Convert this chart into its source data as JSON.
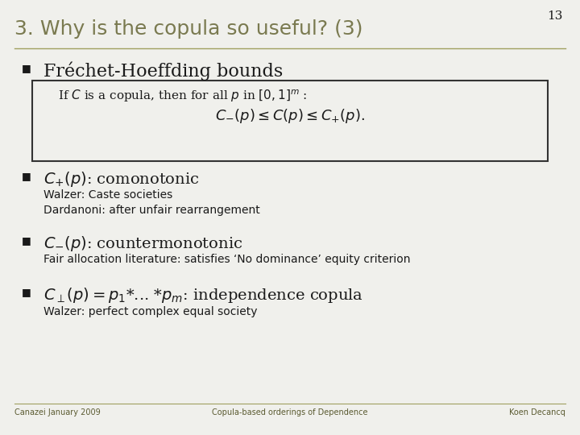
{
  "bg_color": "#f0f0ec",
  "title": "3. Why is the copula so useful? (3)",
  "title_color": "#7a7a50",
  "title_fontsize": 18,
  "slide_number": "13",
  "header_line_color": "#a0a060",
  "box_text_line1": "If $C$ is a copula, then for all $p$ in $[0,1]^m$ :",
  "box_text_line2": "$C_{-}(p) \\leq C(p) \\leq C_{+}(p).$",
  "frechet_bullet": "Fréchet-Hoeffding bounds",
  "bullet1_main": "$C_{+}(p)$: comonotonic",
  "bullet1_sub1": "Walzer: Caste societies",
  "bullet1_sub2": "Dardanoni: after unfair rearrangement",
  "bullet2_main": "$C_{-}(p)$: countermonotonic",
  "bullet2_sub1": "Fair allocation literature: satisfies ‘No dominance’ equity criterion",
  "bullet3_main": "$C_{\\perp}(p)=p_1$*... *$p_m$: independence copula",
  "bullet3_sub1": "Walzer: perfect complex equal society",
  "footer_left": "Canazei January 2009",
  "footer_center": "Copula-based orderings of Dependence",
  "footer_right": "Koen Decancq",
  "text_color": "#1a1a1a",
  "bullet_symbol": "■",
  "footer_color": "#5a5a30"
}
